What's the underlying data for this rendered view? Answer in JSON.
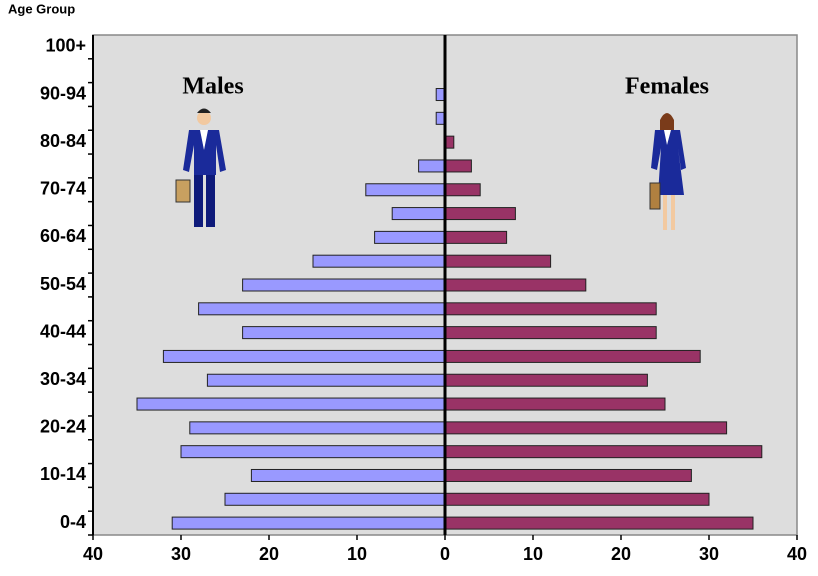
{
  "chart_data": {
    "type": "bar",
    "orientation": "horizontal",
    "y_label": "Age Group",
    "categories": [
      "0-4",
      null,
      "10-14",
      null,
      "20-24",
      null,
      "30-34",
      null,
      "40-44",
      null,
      "50-54",
      null,
      "60-64",
      null,
      "70-74",
      null,
      "80-84",
      null,
      "90-94",
      null,
      "100+"
    ],
    "series": [
      {
        "name": "Males",
        "color": "#9999ff",
        "values": [
          -31,
          -25,
          -22,
          -30,
          -29,
          -35,
          -27,
          -32,
          -23,
          -28,
          -23,
          -15,
          -8,
          -6,
          -9,
          -3,
          0,
          -1,
          -1,
          0,
          0
        ]
      },
      {
        "name": "Females",
        "color": "#993366",
        "values": [
          35,
          30,
          28,
          36,
          32,
          25,
          23,
          29,
          24,
          24,
          16,
          12,
          7,
          8,
          4,
          3,
          1,
          0,
          0,
          0,
          0
        ]
      }
    ],
    "xlim": [
      -40,
      40
    ],
    "xticks": [
      {
        "value": -40,
        "label": "40"
      },
      {
        "value": -30,
        "label": "30"
      },
      {
        "value": -20,
        "label": "20"
      },
      {
        "value": -10,
        "label": "10"
      },
      0,
      10,
      20,
      30,
      40
    ]
  }
}
